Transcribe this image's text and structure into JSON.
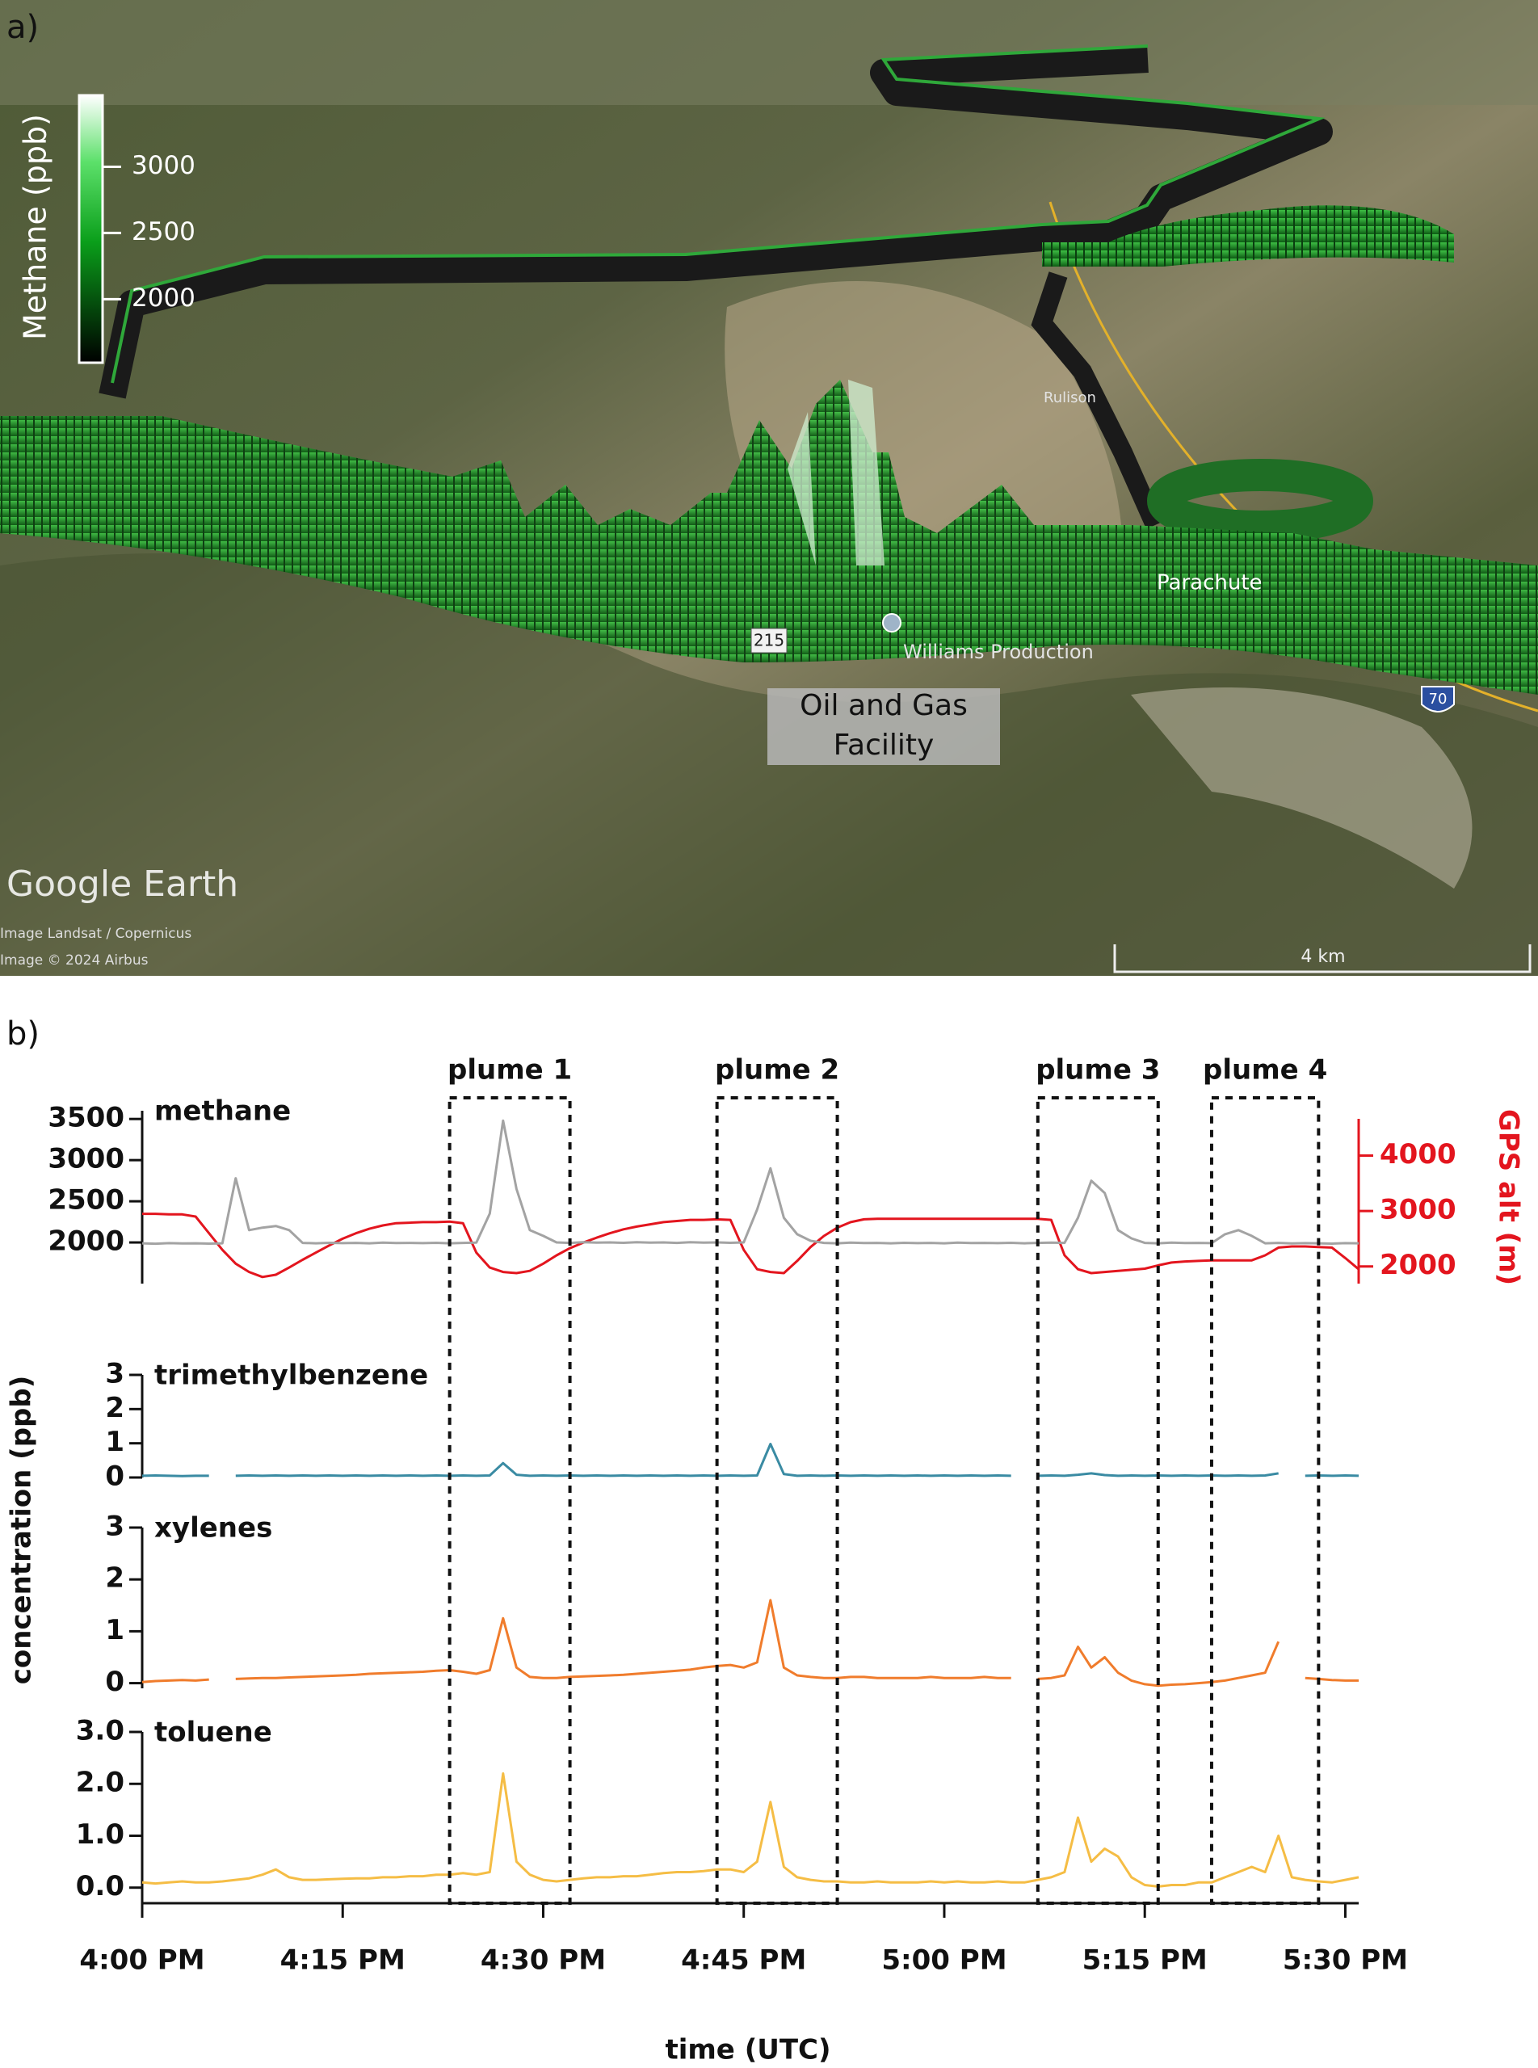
{
  "panel_labels": [
    "a)",
    "b)"
  ],
  "panel_a": {
    "colorbar": {
      "label": "Methane (ppb)",
      "lim": [
        1520,
        3540
      ],
      "ticks": [
        2000,
        2500,
        3000
      ]
    },
    "places": {
      "parachute": "Parachute",
      "williams": "Williams Production",
      "rulison": "Rulison",
      "highway": "215",
      "interstate": "70"
    },
    "annotation": [
      "Oil and Gas",
      "Facility"
    ],
    "watermark": "Google Earth",
    "credits": [
      "Image Landsat / Copernicus",
      "Image © 2024 Airbus"
    ],
    "scale_bar": "4 km"
  },
  "chart_data": {
    "type": "line",
    "xlabel": "time (UTC)",
    "ylabel": "concentration (ppb)",
    "xlim": [
      "4:00 PM",
      "5:31 PM"
    ],
    "xticks": [
      "4:00 PM",
      "4:15 PM",
      "4:30 PM",
      "4:45 PM",
      "5:00 PM",
      "5:15 PM",
      "5:30 PM"
    ],
    "x": [
      "4:00 PM",
      "4:01 PM",
      "4:02 PM",
      "4:03 PM",
      "4:04 PM",
      "4:05 PM",
      "4:06 PM",
      "4:07 PM",
      "4:08 PM",
      "4:09 PM",
      "4:10 PM",
      "4:11 PM",
      "4:12 PM",
      "4:13 PM",
      "4:14 PM",
      "4:15 PM",
      "4:16 PM",
      "4:17 PM",
      "4:18 PM",
      "4:19 PM",
      "4:20 PM",
      "4:21 PM",
      "4:22 PM",
      "4:23 PM",
      "4:24 PM",
      "4:25 PM",
      "4:26 PM",
      "4:27 PM",
      "4:28 PM",
      "4:29 PM",
      "4:30 PM",
      "4:31 PM",
      "4:32 PM",
      "4:33 PM",
      "4:34 PM",
      "4:35 PM",
      "4:36 PM",
      "4:37 PM",
      "4:38 PM",
      "4:39 PM",
      "4:40 PM",
      "4:41 PM",
      "4:42 PM",
      "4:43 PM",
      "4:44 PM",
      "4:45 PM",
      "4:46 PM",
      "4:47 PM",
      "4:48 PM",
      "4:49 PM",
      "4:50 PM",
      "4:51 PM",
      "4:52 PM",
      "4:53 PM",
      "4:54 PM",
      "4:55 PM",
      "4:56 PM",
      "4:57 PM",
      "4:58 PM",
      "4:59 PM",
      "5:00 PM",
      "5:01 PM",
      "5:02 PM",
      "5:03 PM",
      "5:04 PM",
      "5:05 PM",
      "5:06 PM",
      "5:07 PM",
      "5:08 PM",
      "5:09 PM",
      "5:10 PM",
      "5:11 PM",
      "5:12 PM",
      "5:13 PM",
      "5:14 PM",
      "5:15 PM",
      "5:16 PM",
      "5:17 PM",
      "5:18 PM",
      "5:19 PM",
      "5:20 PM",
      "5:21 PM",
      "5:22 PM",
      "5:23 PM",
      "5:24 PM",
      "5:25 PM",
      "5:26 PM",
      "5:27 PM",
      "5:28 PM",
      "5:29 PM",
      "5:30 PM",
      "5:31 PM"
    ],
    "plumes": [
      {
        "label": "plume 1",
        "start": "4:23 PM",
        "end": "4:32 PM"
      },
      {
        "label": "plume 2",
        "start": "4:43 PM",
        "end": "4:52 PM"
      },
      {
        "label": "plume 3",
        "start": "5:07 PM",
        "end": "5:16 PM"
      },
      {
        "label": "plume 4",
        "start": "5:20 PM",
        "end": "5:28 PM"
      }
    ],
    "panels": [
      {
        "ylim": [
          1500,
          3600
        ],
        "yticks": [
          2000,
          2500,
          3000,
          3500
        ],
        "y2lim": [
          1690,
          4810
        ],
        "y2ticks": [
          2000,
          3000,
          4000
        ],
        "series": [
          {
            "name": "methane",
            "color": "#a3a3a3",
            "values": [
              1990,
              1985,
              1992,
              1988,
              1990,
              1986,
              1990,
              2780,
              2150,
              2180,
              2200,
              2150,
              1995,
              1990,
              1996,
              1992,
              1995,
              1990,
              1998,
              1994,
              1995,
              1992,
              1996,
              1990,
              1995,
              1998,
              2350,
              3480,
              2650,
              2150,
              2080,
              2000,
              1995,
              2002,
              1998,
              2000,
              1996,
              2002,
              1998,
              2000,
              1995,
              2003,
              1998,
              2000,
              1996,
              2000,
              2400,
              2900,
              2300,
              2100,
              2020,
              1995,
              1990,
              1998,
              1994,
              1995,
              1990,
              1996,
              1992,
              1995,
              1990,
              1998,
              1994,
              1995,
              1992,
              1996,
              1990,
              1995,
              1998,
              1995,
              2300,
              2750,
              2600,
              2150,
              2050,
              1995,
              1990,
              1998,
              1994,
              1995,
              1992,
              2100,
              2150,
              2080,
              1990,
              1995,
              1988,
              1992,
              1990,
              1986,
              1992,
              1990
            ]
          },
          {
            "name": "GPS alt (m)",
            "axis": "y2",
            "color": "#e3151e",
            "values": [
              2950,
              2950,
              2940,
              2940,
              2900,
              2600,
              2300,
              2050,
              1900,
              1810,
              1850,
              1980,
              2120,
              2250,
              2380,
              2500,
              2600,
              2680,
              2740,
              2780,
              2790,
              2800,
              2800,
              2810,
              2780,
              2250,
              1980,
              1900,
              1880,
              1920,
              2050,
              2200,
              2330,
              2430,
              2520,
              2600,
              2670,
              2720,
              2760,
              2800,
              2820,
              2840,
              2840,
              2850,
              2840,
              2300,
              1950,
              1900,
              1880,
              2100,
              2350,
              2550,
              2700,
              2800,
              2850,
              2860,
              2860,
              2860,
              2860,
              2860,
              2860,
              2860,
              2860,
              2860,
              2860,
              2860,
              2860,
              2860,
              2840,
              2200,
              1950,
              1880,
              1900,
              1920,
              1940,
              1960,
              2020,
              2070,
              2090,
              2100,
              2110,
              2110,
              2110,
              2110,
              2200,
              2340,
              2360,
              2360,
              2350,
              2340,
              2150,
              1950
            ]
          }
        ]
      },
      {
        "ylim": [
          0,
          3
        ],
        "yticks": [
          0,
          1,
          2,
          3
        ],
        "series": [
          {
            "name": "trimethylbenzene",
            "color": "#3a8ba3",
            "values": [
              0.05,
              0.06,
              0.05,
              0.04,
              0.05,
              0.05,
              null,
              0.05,
              0.06,
              0.05,
              0.06,
              0.05,
              0.06,
              0.05,
              0.06,
              0.05,
              0.06,
              0.05,
              0.06,
              0.05,
              0.06,
              0.05,
              0.06,
              0.05,
              0.06,
              0.05,
              0.06,
              0.42,
              0.08,
              0.05,
              0.06,
              0.05,
              0.06,
              0.05,
              0.06,
              0.05,
              0.06,
              0.05,
              0.06,
              0.05,
              0.06,
              0.05,
              0.06,
              0.05,
              0.06,
              0.05,
              0.06,
              0.98,
              0.1,
              0.05,
              0.06,
              0.05,
              0.06,
              0.05,
              0.06,
              0.05,
              0.06,
              0.05,
              0.06,
              0.05,
              0.06,
              0.05,
              0.06,
              0.05,
              0.06,
              0.05,
              null,
              0.05,
              0.06,
              0.05,
              0.08,
              0.12,
              0.07,
              0.05,
              0.06,
              0.05,
              0.06,
              0.05,
              0.06,
              0.05,
              0.06,
              0.05,
              0.06,
              0.05,
              0.06,
              0.12,
              null,
              0.05,
              0.06,
              0.05,
              0.06,
              0.05
            ]
          }
        ]
      },
      {
        "ylim": [
          -0.1,
          3
        ],
        "yticks": [
          0,
          1,
          2,
          3
        ],
        "series": [
          {
            "name": "xylenes",
            "color": "#f07c2c",
            "values": [
              0.02,
              0.04,
              0.05,
              0.06,
              0.05,
              0.07,
              null,
              0.08,
              0.09,
              0.1,
              0.1,
              0.11,
              0.12,
              0.13,
              0.14,
              0.15,
              0.16,
              0.18,
              0.19,
              0.2,
              0.21,
              0.22,
              0.24,
              0.25,
              0.22,
              0.18,
              0.25,
              1.25,
              0.3,
              0.12,
              0.1,
              0.1,
              0.12,
              0.13,
              0.14,
              0.15,
              0.16,
              0.18,
              0.2,
              0.22,
              0.24,
              0.26,
              0.3,
              0.33,
              0.35,
              0.3,
              0.4,
              1.6,
              0.3,
              0.15,
              0.12,
              0.1,
              0.1,
              0.12,
              0.12,
              0.1,
              0.1,
              0.1,
              0.1,
              0.12,
              0.1,
              0.1,
              0.1,
              0.12,
              0.1,
              0.1,
              null,
              0.08,
              0.1,
              0.15,
              0.7,
              0.3,
              0.5,
              0.2,
              0.05,
              -0.02,
              -0.05,
              -0.03,
              -0.02,
              0,
              0.02,
              0.05,
              0.1,
              0.15,
              0.2,
              0.8,
              null,
              0.1,
              0.08,
              0.06,
              0.05,
              0.05
            ]
          }
        ]
      },
      {
        "ylim": [
          -0.3,
          3
        ],
        "yticks": [
          {
            "value": 0,
            "label": "0.0"
          },
          {
            "value": 1,
            "label": "1.0"
          },
          {
            "value": 2,
            "label": "2.0"
          },
          {
            "value": 3,
            "label": "3.0"
          }
        ],
        "series": [
          {
            "name": "toluene",
            "color": "#f5bd45",
            "values": [
              0.1,
              0.08,
              0.1,
              0.12,
              0.1,
              0.1,
              0.12,
              0.15,
              0.18,
              0.25,
              0.35,
              0.2,
              0.15,
              0.15,
              0.16,
              0.17,
              0.18,
              0.18,
              0.2,
              0.2,
              0.22,
              0.22,
              0.25,
              0.25,
              0.28,
              0.25,
              0.3,
              2.2,
              0.5,
              0.25,
              0.15,
              0.12,
              0.15,
              0.18,
              0.2,
              0.2,
              0.22,
              0.22,
              0.25,
              0.28,
              0.3,
              0.3,
              0.32,
              0.35,
              0.35,
              0.3,
              0.5,
              1.65,
              0.4,
              0.2,
              0.15,
              0.12,
              0.12,
              0.1,
              0.1,
              0.12,
              0.1,
              0.1,
              0.1,
              0.12,
              0.1,
              0.12,
              0.1,
              0.1,
              0.12,
              0.1,
              0.1,
              0.15,
              0.2,
              0.3,
              1.35,
              0.5,
              0.75,
              0.6,
              0.2,
              0.05,
              0.02,
              0.05,
              0.05,
              0.1,
              0.1,
              0.2,
              0.3,
              0.4,
              0.3,
              1.0,
              0.2,
              0.15,
              0.12,
              0.1,
              0.15,
              0.2
            ]
          }
        ]
      }
    ]
  }
}
